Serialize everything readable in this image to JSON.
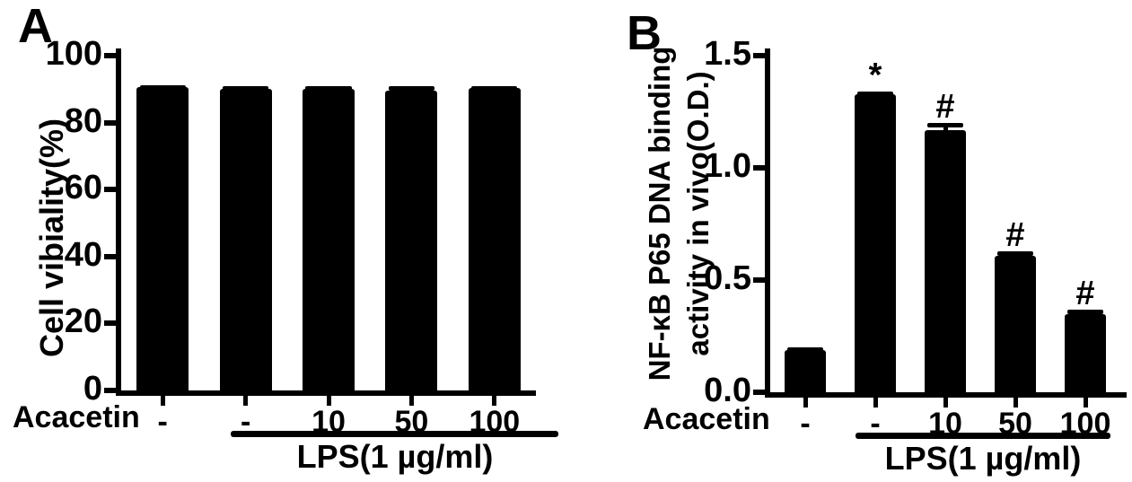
{
  "background_color": "#ffffff",
  "ink_color": "#000000",
  "panels": [
    {
      "letter": "A"
    },
    {
      "letter": "B"
    }
  ],
  "chart_data": [
    {
      "type": "bar",
      "panel": "A",
      "ylabel": "Cell vibiality(%)",
      "ylabel_lines": [
        "Cell vibiality(%)"
      ],
      "xlabel_row": "Acacetin",
      "categories": [
        "-",
        "-",
        "10",
        "50",
        "100"
      ],
      "values": [
        98,
        93,
        91.5,
        92.5,
        94
      ],
      "errors": [
        0.7,
        0.7,
        0.8,
        1.3,
        0.7
      ],
      "significance": [
        "",
        "",
        "",
        "",
        ""
      ],
      "group_annotation": {
        "label": "LPS(1 µg/ml)",
        "applies_to_categories": [
          "-",
          "10",
          "50",
          "100"
        ]
      },
      "ylim": [
        0,
        100
      ],
      "yticks": [
        0,
        20,
        40,
        60,
        80,
        100
      ],
      "ytick_labels": [
        "0",
        "20",
        "40",
        "60",
        "80",
        "100"
      ],
      "bar_color": "#000000",
      "grid": false,
      "legend": false
    },
    {
      "type": "bar",
      "panel": "B",
      "ylabel": "NF-κB P65 DNA binding activity in vivo(O.D.)",
      "ylabel_lines": [
        "NF-κB P65 DNA binding",
        "activity in vivo(O.D.)"
      ],
      "xlabel_row": "Acacetin",
      "categories": [
        "-",
        "-",
        "10",
        "50",
        "100"
      ],
      "values": [
        0.19,
        1.33,
        1.17,
        0.61,
        0.35
      ],
      "errors": [
        0.01,
        0.01,
        0.03,
        0.02,
        0.02
      ],
      "significance": [
        "",
        "*",
        "#",
        "#",
        "#"
      ],
      "group_annotation": {
        "label": "LPS(1 µg/ml)",
        "applies_to_categories": [
          "-",
          "10",
          "50",
          "100"
        ]
      },
      "ylim": [
        0,
        1.5
      ],
      "yticks": [
        0,
        0.5,
        1.0,
        1.5
      ],
      "ytick_labels": [
        "0.0",
        "0.5",
        "1.0",
        "1.5"
      ],
      "bar_color": "#000000",
      "grid": false,
      "legend": false
    }
  ]
}
